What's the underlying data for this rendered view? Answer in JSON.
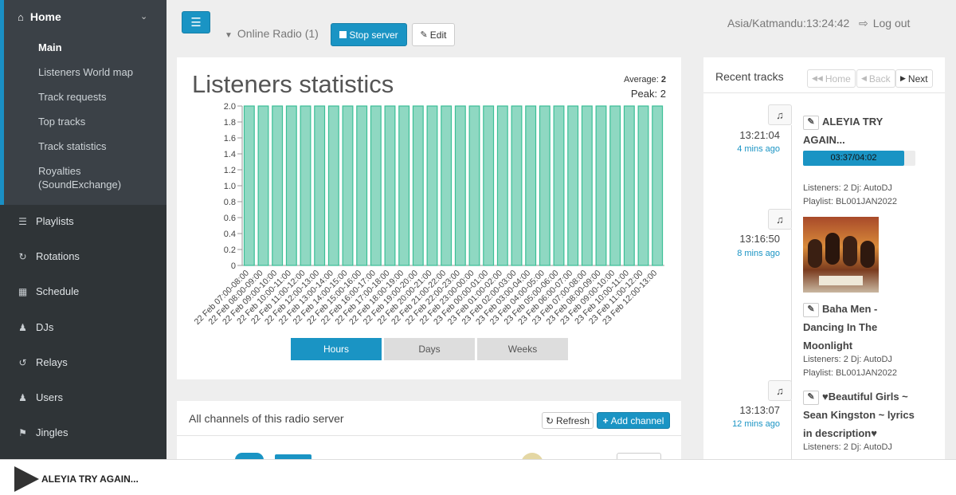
{
  "sidebar": {
    "home": {
      "label": "Home",
      "icon": "home-icon"
    },
    "sub_items": [
      {
        "label": "Main",
        "active": true
      },
      {
        "label": "Listeners World map"
      },
      {
        "label": "Track requests"
      },
      {
        "label": "Top tracks"
      },
      {
        "label": "Track statistics"
      },
      {
        "label": "Royalties (SoundExchange)"
      }
    ],
    "items": [
      {
        "label": "Playlists",
        "icon": "list-icon"
      },
      {
        "label": "Rotations",
        "icon": "refresh-icon"
      },
      {
        "label": "Schedule",
        "icon": "calendar-icon"
      },
      {
        "label": "DJs",
        "icon": "user-icon"
      },
      {
        "label": "Relays",
        "icon": "relay-icon"
      },
      {
        "label": "Users",
        "icon": "users-icon"
      },
      {
        "label": "Jingles",
        "icon": "bell-icon"
      }
    ]
  },
  "topbar": {
    "menu_icon": "hamburger-icon",
    "radio_label": "Online Radio (1)",
    "stop_label": "Stop server",
    "edit_label": "Edit",
    "timezone": "Asia/Katmandu:13:24:42",
    "logout_label": "Log out"
  },
  "stats": {
    "title": "Listeners statistics",
    "average_label": "Average:",
    "average_value": "2",
    "peak_label": "Peak:",
    "peak_value": "2",
    "tabs": [
      "Hours",
      "Days",
      "Weeks"
    ],
    "active_tab": "Hours"
  },
  "chart_data": {
    "type": "bar",
    "categories": [
      "22 Feb 07:00-08:00",
      "22 Feb 08:00-09:00",
      "22 Feb 09:00-10:00",
      "22 Feb 10:00-11:00",
      "22 Feb 11:00-12:00",
      "22 Feb 12:00-13:00",
      "22 Feb 13:00-14:00",
      "22 Feb 14:00-15:00",
      "22 Feb 15:00-16:00",
      "22 Feb 16:00-17:00",
      "22 Feb 17:00-18:00",
      "22 Feb 18:00-19:00",
      "22 Feb 19:00-20:00",
      "22 Feb 20:00-21:00",
      "22 Feb 21:00-22:00",
      "22 Feb 22:00-23:00",
      "22 Feb 23:00-00:00",
      "23 Feb 00:00-01:00",
      "23 Feb 01:00-02:00",
      "23 Feb 02:00-03:00",
      "23 Feb 03:00-04:00",
      "23 Feb 04:00-05:00",
      "23 Feb 05:00-06:00",
      "23 Feb 06:00-07:00",
      "23 Feb 07:00-08:00",
      "23 Feb 08:00-09:00",
      "23 Feb 09:00-10:00",
      "23 Feb 10:00-11:00",
      "23 Feb 11:00-12:00",
      "23 Feb 12:00-13:00"
    ],
    "values": [
      2,
      2,
      2,
      2,
      2,
      2,
      2,
      2,
      2,
      2,
      2,
      2,
      2,
      2,
      2,
      2,
      2,
      2,
      2,
      2,
      2,
      2,
      2,
      2,
      2,
      2,
      2,
      2,
      2,
      2
    ],
    "y_ticks": [
      "2.0",
      "1.8",
      "1.6",
      "1.4",
      "1.2",
      "1.0",
      "0.8",
      "0.6",
      "0.4",
      "0.2",
      "0"
    ],
    "ylim": [
      0,
      2
    ],
    "bar_color": "#8fd8c2",
    "bar_stroke": "#3bbf96",
    "grid": false
  },
  "recent": {
    "title": "Recent tracks",
    "pager": [
      "Home",
      "Back",
      "Next"
    ],
    "tracks": [
      {
        "time": "13:21:04",
        "ago": "4 mins ago",
        "title": "ALEYIA TRY AGAIN...",
        "progress_text": "03:37/04:02",
        "progress": 0.9,
        "listeners": "Listeners: 2 Dj: AutoDJ",
        "playlist": "Playlist: BL001JAN2022"
      },
      {
        "time": "13:16:50",
        "ago": "8 mins ago",
        "title": "Baha Men - Dancing In The Moonlight",
        "listeners": "Listeners: 2 Dj: AutoDJ",
        "playlist": "Playlist: BL001JAN2022"
      },
      {
        "time": "13:13:07",
        "ago": "12 mins ago",
        "title": "♥Beautiful Girls ~ Sean Kingston ~ lyrics in description♥",
        "listeners": "Listeners: 2 Dj: AutoDJ"
      }
    ]
  },
  "channels": {
    "title": "All channels of this radio server",
    "refresh_label": "Refresh",
    "add_label": "Add channel"
  },
  "player": {
    "title": "ALEYIA TRY AGAIN..."
  },
  "colors": {
    "accent": "#1a94c4",
    "sidebar": "#2f3437"
  }
}
